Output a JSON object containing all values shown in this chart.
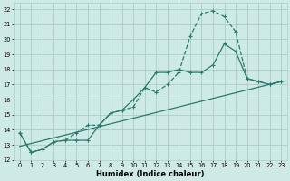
{
  "xlabel": "Humidex (Indice chaleur)",
  "bg_color": "#ceeae6",
  "grid_color": "#aaccc8",
  "line_color": "#2a7a6e",
  "xlim": [
    -0.5,
    23.5
  ],
  "ylim": [
    12,
    22.4
  ],
  "xticks": [
    0,
    1,
    2,
    3,
    4,
    5,
    6,
    7,
    8,
    9,
    10,
    11,
    12,
    13,
    14,
    15,
    16,
    17,
    18,
    19,
    20,
    21,
    22,
    23
  ],
  "yticks": [
    12,
    13,
    14,
    15,
    16,
    17,
    18,
    19,
    20,
    21,
    22
  ],
  "line1_x": [
    0,
    1,
    2,
    3,
    4,
    5,
    6,
    7,
    8,
    9,
    10,
    11,
    12,
    13,
    14,
    15,
    16,
    17,
    18,
    19,
    20,
    21,
    22,
    23
  ],
  "line1_y": [
    13.8,
    12.5,
    12.7,
    13.2,
    13.3,
    13.8,
    14.3,
    14.3,
    15.1,
    15.3,
    15.5,
    16.8,
    16.5,
    17.0,
    17.8,
    20.2,
    21.7,
    21.9,
    21.5,
    20.5,
    17.4,
    17.2,
    17.0,
    17.2
  ],
  "line2_x": [
    0,
    1,
    2,
    3,
    4,
    5,
    6,
    7,
    8,
    9,
    10,
    11,
    12,
    13,
    14,
    15,
    16,
    17,
    18,
    19,
    20,
    21,
    22,
    23
  ],
  "line2_y": [
    13.8,
    12.5,
    12.7,
    13.2,
    13.3,
    13.3,
    13.3,
    14.3,
    15.1,
    15.3,
    16.0,
    16.8,
    17.8,
    17.8,
    18.0,
    17.8,
    17.8,
    18.3,
    19.7,
    19.2,
    17.4,
    17.2,
    17.0,
    17.2
  ],
  "line3_x": [
    0,
    23
  ],
  "line3_y": [
    12.9,
    17.2
  ],
  "marker_size": 2.0,
  "linewidth": 0.9,
  "xlabel_fontsize": 6.0,
  "tick_fontsize": 4.8
}
